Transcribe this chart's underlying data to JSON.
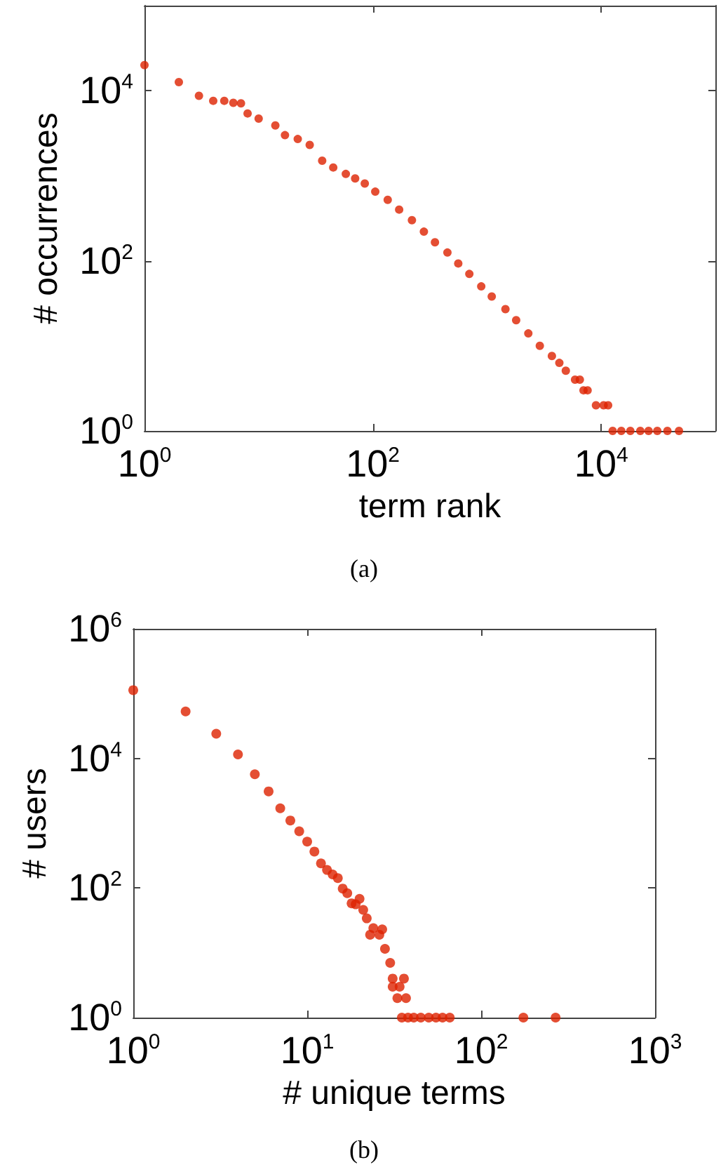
{
  "chart_data": [
    {
      "type": "scatter",
      "xlabel": "term rank",
      "ylabel": "# occurrences",
      "annotations": [
        "(a)"
      ],
      "log": "xy",
      "marker": "circle",
      "xlim": [
        1,
        100000
      ],
      "ylim": [
        1,
        100000
      ],
      "xticks": [
        {
          "value": 1,
          "label": "10$^{0}$"
        },
        {
          "value": 100,
          "label": "10$^{2}$"
        },
        {
          "value": 10000,
          "label": "10$^{4}$"
        }
      ],
      "yticks": [
        {
          "value": 1,
          "label": "10$^{0}$"
        },
        {
          "value": 100,
          "label": "10$^{2}$"
        },
        {
          "value": 10000,
          "label": "10$^{4}$"
        }
      ],
      "series": [
        {
          "color": "#dd2200",
          "x": [
            1,
            2,
            3,
            4,
            5,
            6,
            7,
            8,
            10,
            14,
            17,
            22,
            28,
            36,
            45,
            58,
            70,
            85,
            105,
            135,
            170,
            220,
            280,
            350,
            450,
            560,
            700,
            890,
            1100,
            1450,
            1800,
            2300,
            2900,
            3700,
            4300,
            4900,
            5900,
            6500,
            7000,
            7600,
            9000,
            10500,
            11500,
            12600,
            15000,
            18000,
            22000,
            26000,
            31000,
            38000,
            48000
          ],
          "values": [
            20000,
            12600,
            8700,
            7600,
            7600,
            7200,
            7100,
            5400,
            4700,
            3900,
            3000,
            2700,
            2300,
            1500,
            1250,
            1050,
            930,
            810,
            650,
            520,
            400,
            300,
            220,
            165,
            125,
            93,
            70,
            50,
            38,
            27,
            20,
            14,
            10,
            7.6,
            6.3,
            5.1,
            4,
            4,
            3,
            3,
            2,
            2,
            2,
            1,
            1,
            1,
            1,
            1,
            1,
            1,
            1
          ]
        }
      ]
    },
    {
      "type": "scatter",
      "xlabel": "# unique terms",
      "ylabel": "# users",
      "annotations": [
        "(b)"
      ],
      "log": "xy",
      "marker": "circle",
      "xlim": [
        1,
        1000
      ],
      "ylim": [
        1,
        1000000
      ],
      "xticks": [
        {
          "value": 1,
          "label": "10$^{0}$"
        },
        {
          "value": 10,
          "label": "10$^{1}$"
        },
        {
          "value": 100,
          "label": "10$^{2}$"
        },
        {
          "value": 1000,
          "label": "10$^{3}$"
        }
      ],
      "yticks": [
        {
          "value": 1,
          "label": "10$^{0}$"
        },
        {
          "value": 100,
          "label": "10$^{2}$"
        },
        {
          "value": 10000,
          "label": "10$^{4}$"
        },
        {
          "value": 1000000,
          "label": "10$^{6}$"
        }
      ],
      "series": [
        {
          "color": "#dd2200",
          "x": [
            1,
            2,
            3,
            4,
            5,
            6,
            7,
            8,
            9,
            10,
            11,
            12,
            13,
            14,
            15,
            16,
            17,
            18,
            19,
            20,
            21,
            22,
            23,
            24,
            26,
            27,
            28,
            30,
            31,
            36,
            31,
            34,
            33,
            37,
            35,
            38,
            41,
            45,
            50,
            55,
            60,
            66,
            175,
            268
          ],
          "values": [
            113000,
            53000,
            24000,
            11500,
            5700,
            3100,
            1700,
            1100,
            750,
            520,
            365,
            240,
            190,
            162,
            142,
            98,
            83,
            58,
            56,
            68,
            46,
            34,
            19,
            24,
            19,
            23,
            11.5,
            7,
            4,
            4,
            3,
            3,
            2,
            2,
            1,
            1,
            1,
            1,
            1,
            1,
            1,
            1,
            1,
            1
          ]
        }
      ]
    }
  ]
}
